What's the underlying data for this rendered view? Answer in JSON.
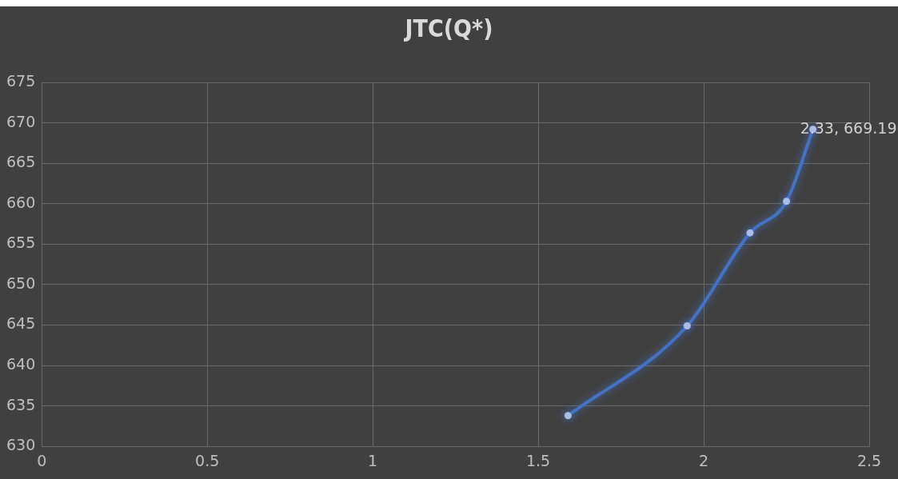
{
  "chart_data": {
    "type": "line",
    "title": "JTC(Q*)",
    "series": [
      {
        "color": "#4472c4",
        "x": [
          1.59,
          1.95,
          2.14,
          2.25,
          2.33
        ],
        "values": [
          633.8,
          644.9,
          656.4,
          660.3,
          669.19
        ]
      }
    ],
    "xlim": [
      0,
      2.5
    ],
    "xticks": [
      0,
      0.5,
      1,
      1.5,
      2,
      2.5
    ],
    "ylim": [
      630,
      675
    ],
    "yticks": [
      630,
      635,
      640,
      645,
      650,
      655,
      660,
      665,
      670,
      675
    ],
    "grid": true,
    "legend": false,
    "marker": "circle",
    "line_style": "solid",
    "annotations": [
      {
        "text": "2.33, 669.19",
        "x": 2.33,
        "y": 669.19
      }
    ]
  }
}
